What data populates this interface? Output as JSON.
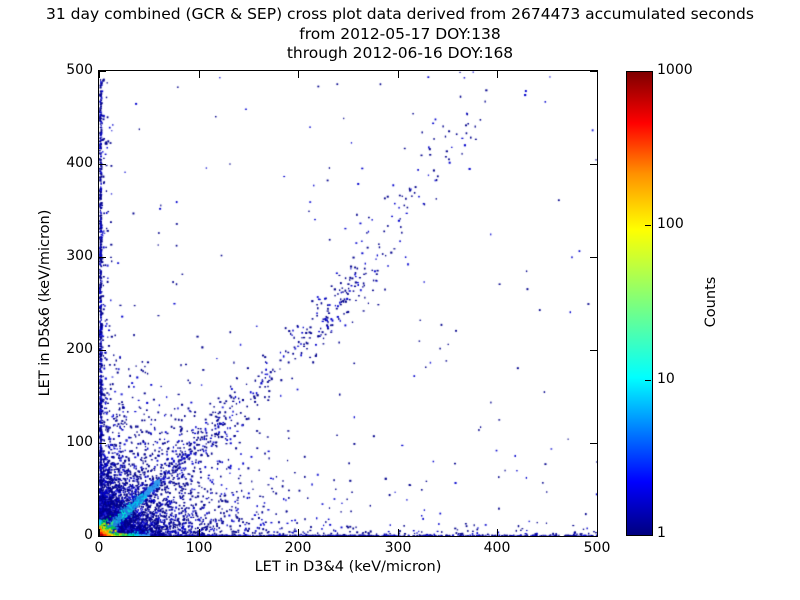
{
  "chart_data": {
    "type": "scatter",
    "title_lines": [
      "31 day combined (GCR & SEP) cross plot data derived from 2674473 accumulated seconds",
      "from 2012-05-17 DOY:138",
      "through 2012-06-16 DOY:168"
    ],
    "xlabel": "LET in D3&4 (keV/micron)",
    "ylabel": "LET in D5&6 (keV/micron)",
    "xlim": [
      0,
      500
    ],
    "ylim": [
      0,
      500
    ],
    "x_ticks": [
      0,
      100,
      200,
      300,
      400,
      500
    ],
    "y_ticks": [
      0,
      100,
      200,
      300,
      400,
      500
    ],
    "grid": false,
    "colorbar": {
      "label": "Counts",
      "scale": "log",
      "range": [
        1,
        1000
      ],
      "ticks": [
        1,
        10,
        100,
        1000
      ],
      "colormap": "jet",
      "stops": [
        {
          "pos": 0.0,
          "color": "#00007f"
        },
        {
          "pos": 0.115,
          "color": "#0000ff"
        },
        {
          "pos": 0.34,
          "color": "#00ffff"
        },
        {
          "pos": 0.5,
          "color": "#7dff7d"
        },
        {
          "pos": 0.66,
          "color": "#ffff00"
        },
        {
          "pos": 0.78,
          "color": "#ff9100"
        },
        {
          "pos": 0.89,
          "color": "#ff0000"
        },
        {
          "pos": 1.0,
          "color": "#7f0000"
        }
      ]
    },
    "features": [
      "2-D histogram / density cross plot, counts on log color scale 1-1000 (jet colormap)",
      "hot spot (red~1000 counts) at the origin fading through orange/yellow/green within ~20 keV/micron",
      "bright cyan-green y=x coincidence streak from origin to ~(55,55)",
      "blue y~x band continuing, curving slightly upward, reaching ~(370,460), denser knot near (235,245)",
      "dense column of counts hugging x=0 for the full y range 0-490",
      "dense row of counts hugging y=0 for the full x range 0-500",
      "diffuse fan of single counts concentrated near the origin and between the band and both axes"
    ],
    "render_spec": {
      "seed": 1337,
      "point_colors": [
        [
          "#00008b",
          0.68
        ],
        [
          "#0000cd",
          0.24
        ],
        [
          "#2b2bd8",
          0.08
        ]
      ],
      "components": [
        {
          "kind": "exp2d",
          "count": 2600,
          "sx": 45,
          "sy": 42,
          "size": 1.5
        },
        {
          "kind": "exp2d",
          "count": 2500,
          "sx": 14,
          "sy": 12.5,
          "size": 1.6
        },
        {
          "kind": "column",
          "count": 980,
          "edge": 1.8,
          "tail": 5,
          "tailFrac": 0.28,
          "len": 492,
          "power": 1.35,
          "size": 1.45
        },
        {
          "kind": "row",
          "count": 1200,
          "edge": 1.6,
          "tail": 4.5,
          "tailFrac": 0.25,
          "len": 500,
          "power": 1.5,
          "size": 1.45
        },
        {
          "kind": "diag",
          "count": 520,
          "tMax": 380,
          "tPower": 2.0,
          "bendStart": 150,
          "bendCoef": 0.0019,
          "sigma0": 1.3,
          "sigmaSlope": 0.05,
          "size": 1.5
        },
        {
          "kind": "diag",
          "count": 300,
          "tMax": 130,
          "tPower": 1.5,
          "bendStart": 150,
          "bendCoef": 0.0019,
          "sigma0": 1.6,
          "sigmaSlope": 0.07,
          "size": 1.5
        },
        {
          "kind": "diagKnot",
          "count": 95,
          "tMean": 235,
          "tSd": 22,
          "bendStart": 150,
          "bendCoef": 0.0019,
          "sigma": 9,
          "size": 1.5
        },
        {
          "kind": "uniform",
          "count": 155,
          "xMax": 500,
          "yMax": 500,
          "yPower": 1.25,
          "size": 1.4
        }
      ],
      "bottom_strip": {
        "yScale": 1.15,
        "size": 1.5,
        "bins": [
          {
            "x0": 5,
            "x1": 11,
            "count": 70,
            "color": "#ff8800"
          },
          {
            "x0": 11,
            "x1": 16,
            "count": 60,
            "color": "#ffd300"
          },
          {
            "x0": 16,
            "x1": 21,
            "count": 55,
            "color": "#c8e600"
          },
          {
            "x0": 21,
            "x1": 27,
            "count": 60,
            "color": "#4fd850"
          },
          {
            "x0": 27,
            "x1": 33,
            "count": 55,
            "color": "#00dcb4"
          },
          {
            "x0": 33,
            "x1": 40,
            "count": 55,
            "color": "#00ccee"
          },
          {
            "x0": 40,
            "x1": 50,
            "count": 55,
            "color": "#2f9bf0"
          }
        ]
      },
      "left_strip": {
        "xScale": 1.0,
        "size": 1.5,
        "bins": [
          {
            "y0": 5,
            "y1": 8,
            "count": 40,
            "color": "#ff8800"
          },
          {
            "y0": 8,
            "y1": 11,
            "count": 34,
            "color": "#ffd300"
          },
          {
            "y0": 11,
            "y1": 14,
            "count": 30,
            "color": "#7fd13b"
          },
          {
            "y0": 14,
            "y1": 18,
            "count": 30,
            "color": "#00ccee"
          }
        ]
      },
      "streak": {
        "sigma": 1.4,
        "size": 1.5,
        "bins": [
          {
            "t0": 2,
            "t1": 9,
            "count": 60,
            "color": "#9be04a"
          },
          {
            "t0": 9,
            "t1": 16,
            "count": 70,
            "color": "#2fe08c"
          },
          {
            "t0": 16,
            "t1": 32,
            "count": 150,
            "color": "#00e4d8"
          },
          {
            "t0": 32,
            "t1": 46,
            "count": 110,
            "color": "#00c8ee"
          },
          {
            "t0": 46,
            "t1": 60,
            "count": 80,
            "color": "#2f9bf0"
          }
        ],
        "glow": {
          "count": 130,
          "t0": 8,
          "t1": 42,
          "sigma": 3.2,
          "color": "#1f7fe0"
        }
      },
      "origin_blob": {
        "size": 1.6,
        "layers": [
          {
            "count": 260,
            "sx": 9,
            "sy": 7,
            "color": "#00c853"
          },
          {
            "count": 200,
            "sx": 6.5,
            "sy": 5,
            "color": "#cddc00"
          },
          {
            "count": 170,
            "sx": 5,
            "sy": 3.8,
            "color": "#ffd500"
          },
          {
            "count": 150,
            "sx": 3.8,
            "sy": 3,
            "color": "#ff8c00"
          },
          {
            "count": 130,
            "sx": 2.8,
            "sy": 2.2,
            "color": "#ff2000"
          },
          {
            "count": 60,
            "sx": 1.4,
            "sy": 1.1,
            "color": "#a00000"
          }
        ]
      }
    }
  }
}
